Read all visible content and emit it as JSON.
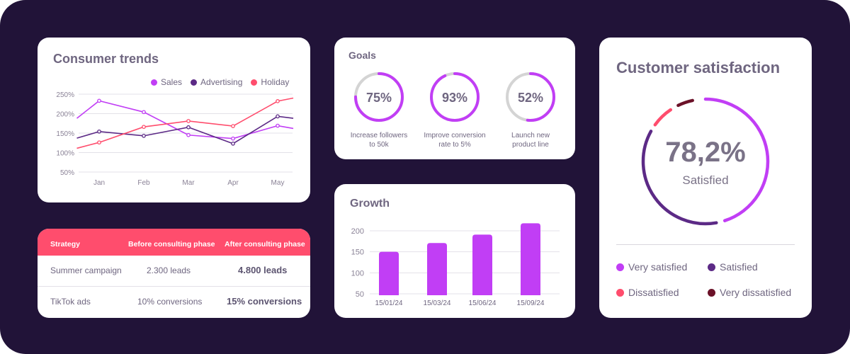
{
  "colors": {
    "background": "#211338",
    "violet": "#c13ef5",
    "purple": "#5c2a86",
    "coral": "#ff4d6d",
    "maroon": "#6b1128",
    "track": "#d4d4d4"
  },
  "trends": {
    "title": "Consumer trends",
    "chart_data": {
      "type": "line",
      "categories": [
        "Jan",
        "Feb",
        "Mar",
        "Apr",
        "May"
      ],
      "y_ticks": [
        "250%",
        "200%",
        "150%",
        "100%",
        "50%"
      ],
      "ylim": [
        50,
        250
      ],
      "series": [
        {
          "name": "Sales",
          "color": "#c13ef5",
          "points": [
            [
              0.5,
              188
            ],
            [
              1,
              233
            ],
            [
              2,
              204
            ],
            [
              3,
              145
            ],
            [
              4,
              136
            ],
            [
              5,
              169
            ],
            [
              5.35,
              162
            ]
          ]
        },
        {
          "name": "Advertising",
          "color": "#5c2a86",
          "points": [
            [
              0.5,
              137
            ],
            [
              1,
              154
            ],
            [
              2,
              143
            ],
            [
              3,
              165
            ],
            [
              4,
              123
            ],
            [
              5,
              193
            ],
            [
              5.35,
              188
            ]
          ]
        },
        {
          "name": "Holiday",
          "color": "#ff4d6d",
          "points": [
            [
              0.5,
              111
            ],
            [
              1,
              126
            ],
            [
              2,
              166
            ],
            [
              3,
              181
            ],
            [
              4,
              168
            ],
            [
              5,
              232
            ],
            [
              5.35,
              240
            ]
          ]
        }
      ]
    }
  },
  "strategy": {
    "headers": [
      "Strategy",
      "Before consulting phase",
      "After consulting phase"
    ],
    "rows": [
      {
        "strategy": "Summer campaign",
        "before": "2.300 leads",
        "after": "4.800 leads"
      },
      {
        "strategy": "TikTok ads",
        "before": "10% conversions",
        "after": "15% conversions"
      }
    ]
  },
  "goals": {
    "title": "Goals",
    "items": [
      {
        "value": "75%",
        "fraction": 0.75,
        "label_line1": "Increase followers",
        "label_line2": "to 50k"
      },
      {
        "value": "93%",
        "fraction": 0.93,
        "label_line1": "Improve conversion",
        "label_line2": "rate to 5%"
      },
      {
        "value": "52%",
        "fraction": 0.52,
        "label_line1": "Launch new",
        "label_line2": "product line"
      }
    ]
  },
  "growth": {
    "title": "Growth",
    "chart_data": {
      "type": "bar",
      "categories": [
        "15/01/24",
        "15/03/24",
        "15/06/24",
        "15/09/24"
      ],
      "values": [
        150,
        171,
        191,
        218
      ],
      "y_ticks": [
        "200",
        "150",
        "100",
        "50"
      ],
      "ylim": [
        45,
        220
      ]
    }
  },
  "satisfaction": {
    "title": "Customer satisfaction",
    "value": "78,2%",
    "label": "Satisfied",
    "legend": [
      {
        "label": "Very satisfied",
        "color": "#c13ef5"
      },
      {
        "label": "Satisfied",
        "color": "#5c2a86"
      },
      {
        "label": "Dissatisfied",
        "color": "#ff4d6d"
      },
      {
        "label": "Very dissatisfied",
        "color": "#6b1128"
      }
    ]
  }
}
